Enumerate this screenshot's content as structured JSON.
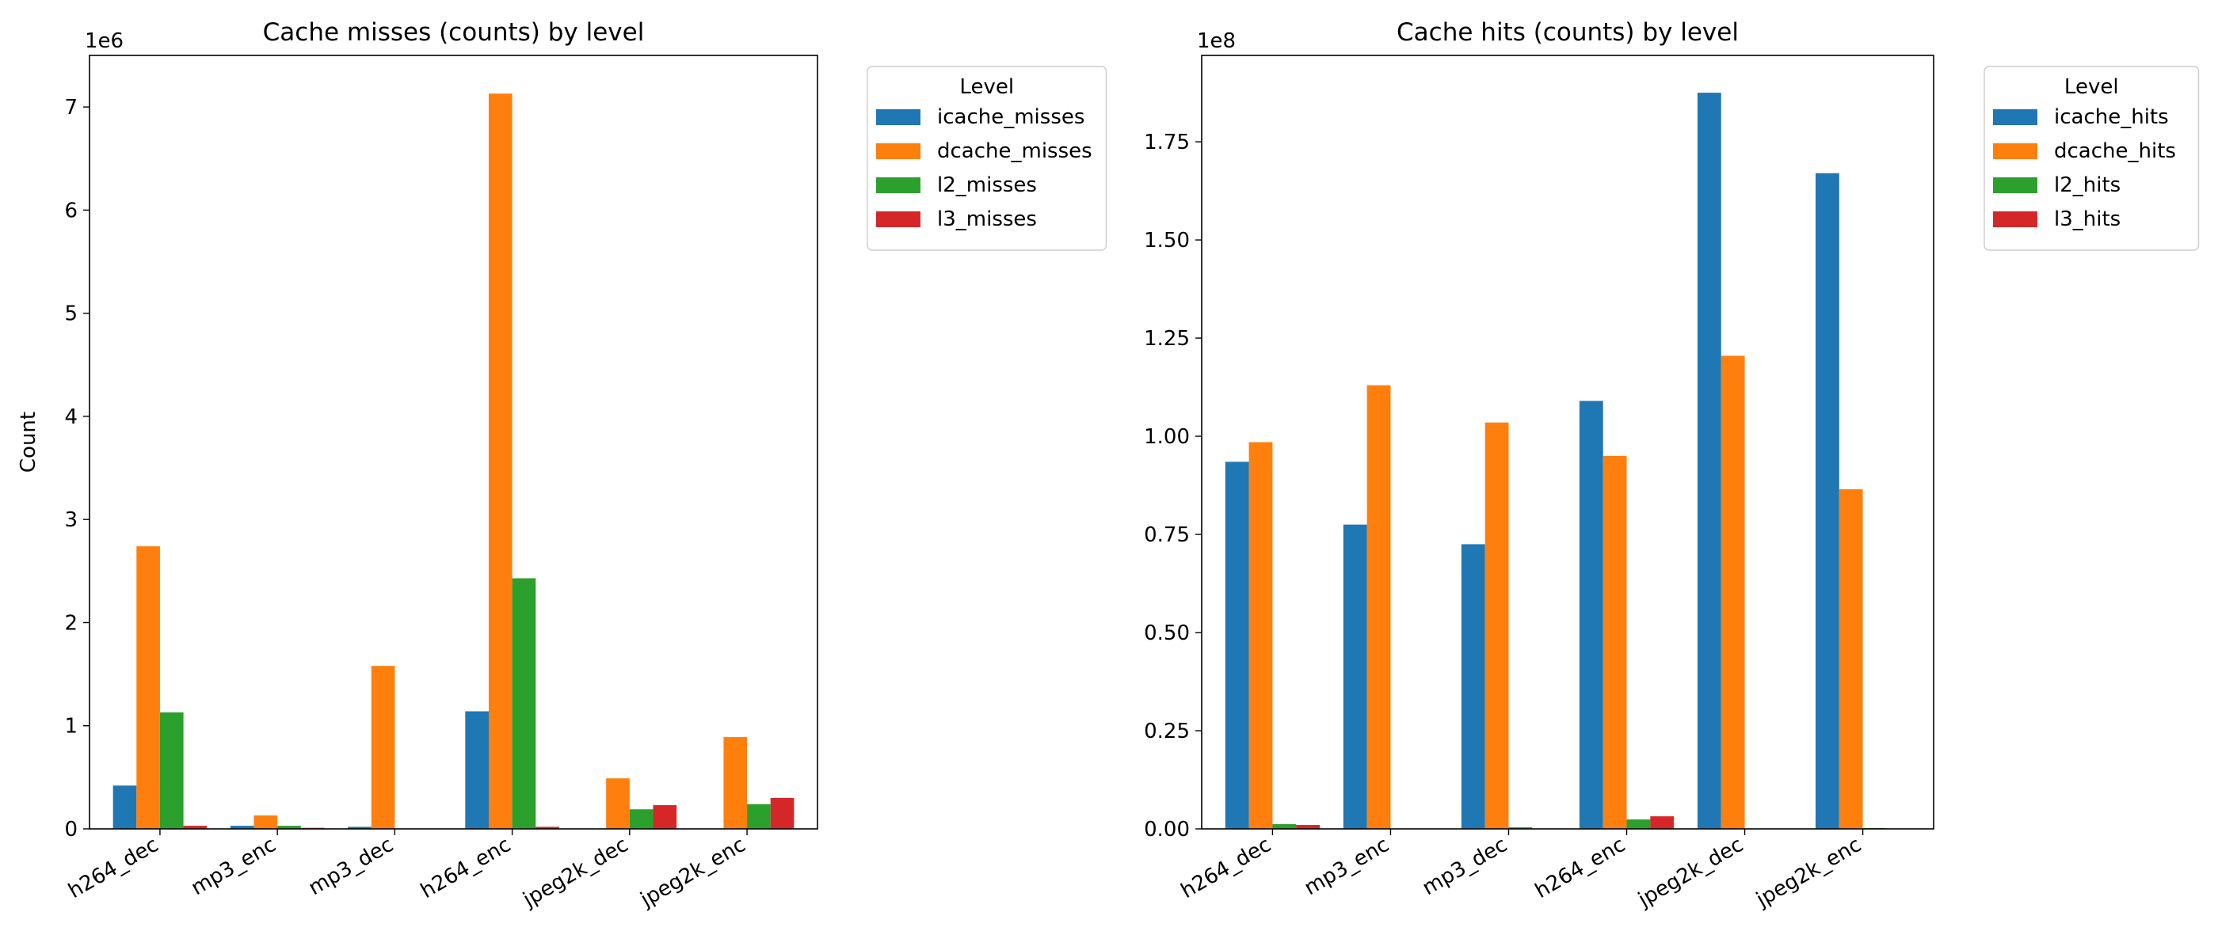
{
  "chart_data": [
    {
      "type": "bar",
      "title": "Cache misses (counts) by level",
      "xlabel": "",
      "ylabel": "Count",
      "scale_label": "1e6",
      "scale": 1000000,
      "ylim": [
        0,
        7.5
      ],
      "yticks": [
        "0",
        "1",
        "2",
        "3",
        "4",
        "5",
        "6",
        "7"
      ],
      "grid": false,
      "legend": {
        "title": "Level",
        "placement": "outside-top-right"
      },
      "categories": [
        "h264_dec",
        "mp3_enc",
        "mp3_dec",
        "h264_enc",
        "jpeg2k_dec",
        "jpeg2k_enc"
      ],
      "series": [
        {
          "name": "icache_misses",
          "color": "#1f77b4",
          "values": [
            0.42,
            0.03,
            0.02,
            1.14,
            0.0,
            0.0
          ]
        },
        {
          "name": "dcache_misses",
          "color": "#ff7f0e",
          "values": [
            2.74,
            0.13,
            1.58,
            7.13,
            0.49,
            0.89
          ]
        },
        {
          "name": "l2_misses",
          "color": "#2ca02c",
          "values": [
            1.13,
            0.03,
            0.0,
            2.43,
            0.19,
            0.24
          ]
        },
        {
          "name": "l3_misses",
          "color": "#d62728",
          "values": [
            0.03,
            0.01,
            0.0,
            0.02,
            0.23,
            0.3
          ]
        }
      ]
    },
    {
      "type": "bar",
      "title": "Cache hits (counts) by level",
      "xlabel": "",
      "ylabel": "",
      "scale_label": "1e8",
      "scale": 100000000,
      "ylim": [
        0,
        1.97
      ],
      "yticks": [
        "0.00",
        "0.25",
        "0.50",
        "0.75",
        "1.00",
        "1.25",
        "1.50",
        "1.75"
      ],
      "grid": false,
      "legend": {
        "title": "Level",
        "placement": "outside-top-right"
      },
      "categories": [
        "h264_dec",
        "mp3_enc",
        "mp3_dec",
        "h264_enc",
        "jpeg2k_dec",
        "jpeg2k_enc"
      ],
      "series": [
        {
          "name": "icache_hits",
          "color": "#1f77b4",
          "values": [
            0.935,
            0.775,
            0.725,
            1.09,
            1.875,
            1.67
          ]
        },
        {
          "name": "dcache_hits",
          "color": "#ff7f0e",
          "values": [
            0.985,
            1.13,
            1.035,
            0.95,
            1.205,
            0.865
          ]
        },
        {
          "name": "l2_hits",
          "color": "#2ca02c",
          "values": [
            0.012,
            0.0,
            0.004,
            0.024,
            0.0,
            0.002
          ]
        },
        {
          "name": "l3_hits",
          "color": "#d62728",
          "values": [
            0.01,
            0.0,
            0.0,
            0.032,
            0.0,
            0.0
          ]
        }
      ]
    }
  ]
}
